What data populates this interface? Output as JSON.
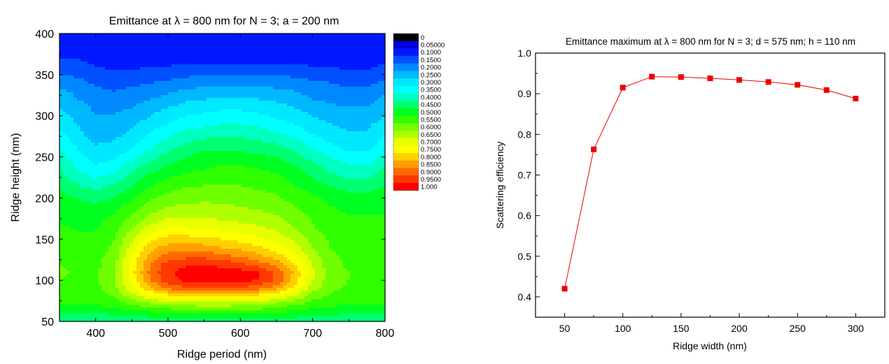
{
  "chart_data": [
    {
      "type": "heatmap",
      "title": "Emittance at λ = 800 nm for N = 3; a = 200 nm",
      "xlabel": "Ridge period (nm)",
      "ylabel": "Ridge height (nm)",
      "xlim": [
        350,
        800
      ],
      "ylim": [
        50,
        400
      ],
      "x_ticks": [
        "400",
        "500",
        "600",
        "700",
        "800"
      ],
      "y_ticks": [
        "50",
        "100",
        "150",
        "200",
        "250",
        "300",
        "350",
        "400"
      ],
      "colorbar": {
        "labels": [
          "0",
          "0.05000",
          "0.1000",
          "0.1500",
          "0.2000",
          "0.2500",
          "0.3000",
          "0.3500",
          "0.4000",
          "0.4500",
          "0.5000",
          "0.5500",
          "0.6000",
          "0.6500",
          "0.7000",
          "0.7500",
          "0.8000",
          "0.8500",
          "0.9000",
          "0.9500",
          "1.000"
        ],
        "colors": [
          "#000000",
          "#0000d8",
          "#0018ff",
          "#0050ff",
          "#0088ff",
          "#00b8ff",
          "#00e8ff",
          "#00ffff",
          "#00ffc0",
          "#00ff70",
          "#00ff20",
          "#30ff00",
          "#70ff00",
          "#b0ff00",
          "#e8ff00",
          "#ffff00",
          "#ffd000",
          "#ffa000",
          "#ff6800",
          "#ff3800",
          "#ff0000"
        ]
      },
      "x": [
        350,
        375,
        400,
        425,
        450,
        475,
        500,
        525,
        550,
        575,
        600,
        625,
        650,
        675,
        700,
        725,
        750,
        775,
        800
      ],
      "y": [
        50,
        60,
        70,
        80,
        90,
        100,
        110,
        120,
        130,
        140,
        150,
        160,
        170,
        180,
        190,
        200,
        210,
        220,
        230,
        240,
        250,
        260,
        270,
        280,
        290,
        300,
        310,
        320,
        330,
        340,
        350,
        360,
        370,
        380,
        390,
        400
      ],
      "z": [
        [
          0.4,
          0.4,
          0.41,
          0.41,
          0.42,
          0.42,
          0.42,
          0.42,
          0.42,
          0.42,
          0.42,
          0.42,
          0.42,
          0.42,
          0.42,
          0.42,
          0.42,
          0.42,
          0.42
        ],
        [
          0.45,
          0.45,
          0.45,
          0.46,
          0.47,
          0.48,
          0.49,
          0.5,
          0.5,
          0.5,
          0.5,
          0.5,
          0.49,
          0.48,
          0.47,
          0.46,
          0.45,
          0.45,
          0.45
        ],
        [
          0.5,
          0.5,
          0.5,
          0.52,
          0.55,
          0.58,
          0.6,
          0.61,
          0.62,
          0.62,
          0.61,
          0.6,
          0.58,
          0.55,
          0.52,
          0.51,
          0.5,
          0.5,
          0.5
        ],
        [
          0.52,
          0.52,
          0.53,
          0.55,
          0.62,
          0.68,
          0.72,
          0.74,
          0.75,
          0.75,
          0.74,
          0.72,
          0.69,
          0.64,
          0.57,
          0.54,
          0.53,
          0.53,
          0.52
        ],
        [
          0.53,
          0.53,
          0.54,
          0.58,
          0.68,
          0.79,
          0.86,
          0.89,
          0.9,
          0.9,
          0.89,
          0.87,
          0.82,
          0.73,
          0.62,
          0.56,
          0.54,
          0.54,
          0.53
        ],
        [
          0.55,
          0.53,
          0.54,
          0.59,
          0.72,
          0.85,
          0.93,
          0.96,
          0.97,
          0.97,
          0.97,
          0.95,
          0.89,
          0.78,
          0.65,
          0.57,
          0.55,
          0.54,
          0.53
        ],
        [
          0.57,
          0.53,
          0.54,
          0.59,
          0.73,
          0.86,
          0.94,
          0.97,
          0.98,
          0.98,
          0.97,
          0.95,
          0.89,
          0.79,
          0.66,
          0.57,
          0.55,
          0.54,
          0.54
        ],
        [
          0.55,
          0.53,
          0.54,
          0.58,
          0.72,
          0.85,
          0.92,
          0.94,
          0.94,
          0.93,
          0.91,
          0.87,
          0.83,
          0.75,
          0.64,
          0.57,
          0.54,
          0.54,
          0.53
        ],
        [
          0.54,
          0.52,
          0.53,
          0.57,
          0.7,
          0.82,
          0.87,
          0.88,
          0.88,
          0.86,
          0.84,
          0.81,
          0.77,
          0.71,
          0.62,
          0.56,
          0.54,
          0.53,
          0.53
        ],
        [
          0.53,
          0.52,
          0.52,
          0.56,
          0.67,
          0.78,
          0.82,
          0.83,
          0.82,
          0.8,
          0.78,
          0.76,
          0.72,
          0.67,
          0.6,
          0.55,
          0.53,
          0.53,
          0.52
        ],
        [
          0.52,
          0.51,
          0.51,
          0.55,
          0.64,
          0.74,
          0.77,
          0.77,
          0.76,
          0.75,
          0.73,
          0.71,
          0.68,
          0.64,
          0.58,
          0.54,
          0.53,
          0.52,
          0.52
        ],
        [
          0.51,
          0.5,
          0.5,
          0.53,
          0.61,
          0.69,
          0.72,
          0.72,
          0.71,
          0.7,
          0.69,
          0.67,
          0.65,
          0.61,
          0.56,
          0.53,
          0.52,
          0.52,
          0.51
        ],
        [
          0.5,
          0.49,
          0.49,
          0.52,
          0.58,
          0.64,
          0.67,
          0.67,
          0.67,
          0.66,
          0.65,
          0.64,
          0.62,
          0.59,
          0.55,
          0.52,
          0.51,
          0.51,
          0.51
        ],
        [
          0.49,
          0.48,
          0.48,
          0.5,
          0.55,
          0.6,
          0.63,
          0.64,
          0.64,
          0.63,
          0.62,
          0.61,
          0.6,
          0.57,
          0.54,
          0.51,
          0.5,
          0.5,
          0.5
        ],
        [
          0.48,
          0.47,
          0.46,
          0.48,
          0.52,
          0.57,
          0.6,
          0.61,
          0.61,
          0.61,
          0.6,
          0.59,
          0.58,
          0.55,
          0.52,
          0.5,
          0.49,
          0.49,
          0.49
        ],
        [
          0.47,
          0.45,
          0.43,
          0.45,
          0.49,
          0.54,
          0.57,
          0.58,
          0.59,
          0.58,
          0.58,
          0.57,
          0.56,
          0.53,
          0.51,
          0.48,
          0.47,
          0.47,
          0.48
        ],
        [
          0.45,
          0.42,
          0.4,
          0.42,
          0.46,
          0.51,
          0.54,
          0.56,
          0.56,
          0.56,
          0.56,
          0.55,
          0.54,
          0.51,
          0.49,
          0.46,
          0.44,
          0.44,
          0.46
        ],
        [
          0.43,
          0.39,
          0.36,
          0.39,
          0.43,
          0.48,
          0.51,
          0.53,
          0.54,
          0.54,
          0.54,
          0.53,
          0.52,
          0.49,
          0.46,
          0.43,
          0.41,
          0.41,
          0.44
        ],
        [
          0.41,
          0.36,
          0.33,
          0.35,
          0.4,
          0.45,
          0.48,
          0.5,
          0.51,
          0.52,
          0.52,
          0.51,
          0.5,
          0.47,
          0.44,
          0.4,
          0.38,
          0.38,
          0.42
        ],
        [
          0.39,
          0.34,
          0.3,
          0.32,
          0.37,
          0.42,
          0.45,
          0.48,
          0.49,
          0.5,
          0.5,
          0.49,
          0.48,
          0.45,
          0.41,
          0.38,
          0.35,
          0.35,
          0.39
        ],
        [
          0.37,
          0.32,
          0.28,
          0.29,
          0.33,
          0.38,
          0.42,
          0.45,
          0.47,
          0.47,
          0.47,
          0.46,
          0.45,
          0.42,
          0.38,
          0.35,
          0.32,
          0.32,
          0.36
        ],
        [
          0.35,
          0.3,
          0.26,
          0.27,
          0.3,
          0.35,
          0.39,
          0.42,
          0.44,
          0.44,
          0.44,
          0.43,
          0.42,
          0.39,
          0.35,
          0.32,
          0.29,
          0.29,
          0.33
        ],
        [
          0.33,
          0.28,
          0.24,
          0.25,
          0.28,
          0.32,
          0.36,
          0.39,
          0.41,
          0.41,
          0.41,
          0.4,
          0.39,
          0.36,
          0.32,
          0.29,
          0.27,
          0.27,
          0.31
        ],
        [
          0.31,
          0.26,
          0.22,
          0.23,
          0.26,
          0.3,
          0.33,
          0.36,
          0.37,
          0.38,
          0.38,
          0.37,
          0.35,
          0.33,
          0.29,
          0.27,
          0.25,
          0.25,
          0.29
        ],
        [
          0.29,
          0.25,
          0.21,
          0.22,
          0.24,
          0.27,
          0.3,
          0.33,
          0.34,
          0.35,
          0.35,
          0.34,
          0.32,
          0.3,
          0.27,
          0.25,
          0.24,
          0.24,
          0.27
        ],
        [
          0.27,
          0.23,
          0.2,
          0.2,
          0.22,
          0.25,
          0.28,
          0.3,
          0.31,
          0.32,
          0.32,
          0.31,
          0.29,
          0.27,
          0.25,
          0.23,
          0.22,
          0.22,
          0.25
        ],
        [
          0.25,
          0.22,
          0.19,
          0.19,
          0.2,
          0.23,
          0.25,
          0.27,
          0.28,
          0.29,
          0.29,
          0.28,
          0.27,
          0.25,
          0.23,
          0.21,
          0.2,
          0.2,
          0.23
        ],
        [
          0.23,
          0.2,
          0.18,
          0.17,
          0.18,
          0.2,
          0.22,
          0.24,
          0.25,
          0.26,
          0.26,
          0.25,
          0.24,
          0.22,
          0.2,
          0.19,
          0.18,
          0.18,
          0.21
        ],
        [
          0.21,
          0.19,
          0.16,
          0.15,
          0.16,
          0.17,
          0.19,
          0.21,
          0.22,
          0.22,
          0.22,
          0.22,
          0.21,
          0.2,
          0.18,
          0.17,
          0.16,
          0.16,
          0.19
        ],
        [
          0.18,
          0.17,
          0.14,
          0.13,
          0.14,
          0.15,
          0.16,
          0.17,
          0.18,
          0.19,
          0.19,
          0.18,
          0.18,
          0.17,
          0.16,
          0.15,
          0.14,
          0.14,
          0.16
        ],
        [
          0.15,
          0.14,
          0.12,
          0.11,
          0.11,
          0.12,
          0.13,
          0.14,
          0.15,
          0.15,
          0.15,
          0.15,
          0.15,
          0.14,
          0.13,
          0.12,
          0.11,
          0.11,
          0.13
        ],
        [
          0.13,
          0.12,
          0.1,
          0.09,
          0.09,
          0.1,
          0.1,
          0.11,
          0.11,
          0.11,
          0.11,
          0.11,
          0.11,
          0.11,
          0.1,
          0.1,
          0.09,
          0.09,
          0.11
        ],
        [
          0.1,
          0.1,
          0.08,
          0.07,
          0.07,
          0.07,
          0.07,
          0.08,
          0.08,
          0.08,
          0.08,
          0.08,
          0.08,
          0.08,
          0.08,
          0.07,
          0.07,
          0.07,
          0.08
        ],
        [
          0.08,
          0.08,
          0.06,
          0.06,
          0.06,
          0.06,
          0.06,
          0.06,
          0.06,
          0.06,
          0.06,
          0.06,
          0.06,
          0.06,
          0.06,
          0.06,
          0.06,
          0.06,
          0.07
        ],
        [
          0.06,
          0.06,
          0.055,
          0.055,
          0.055,
          0.055,
          0.055,
          0.055,
          0.055,
          0.055,
          0.055,
          0.055,
          0.055,
          0.055,
          0.055,
          0.055,
          0.055,
          0.055,
          0.06
        ],
        [
          0.055,
          0.055,
          0.055,
          0.055,
          0.055,
          0.055,
          0.055,
          0.055,
          0.055,
          0.055,
          0.055,
          0.055,
          0.055,
          0.055,
          0.055,
          0.055,
          0.055,
          0.055,
          0.055
        ]
      ]
    },
    {
      "type": "line",
      "title": "Emittance maximum at λ = 800 nm for N = 3; d = 575 nm; h = 110 nm",
      "xlabel": "Ridge width (nm)",
      "ylabel": "Scattering efficiency",
      "xlim": [
        25,
        325
      ],
      "ylim": [
        0.35,
        1.0
      ],
      "x_ticks": [
        "50",
        "100",
        "150",
        "200",
        "250",
        "300"
      ],
      "y_ticks": [
        "0.4",
        "0.5",
        "0.6",
        "0.7",
        "0.8",
        "0.9",
        "1.0"
      ],
      "color": "#ee0000",
      "series": [
        {
          "x": [
            50,
            75,
            100,
            125,
            150,
            175,
            200,
            225,
            250,
            275,
            300
          ],
          "values": [
            0.42,
            0.763,
            0.915,
            0.942,
            0.941,
            0.938,
            0.934,
            0.929,
            0.922,
            0.909,
            0.888
          ]
        }
      ]
    }
  ]
}
